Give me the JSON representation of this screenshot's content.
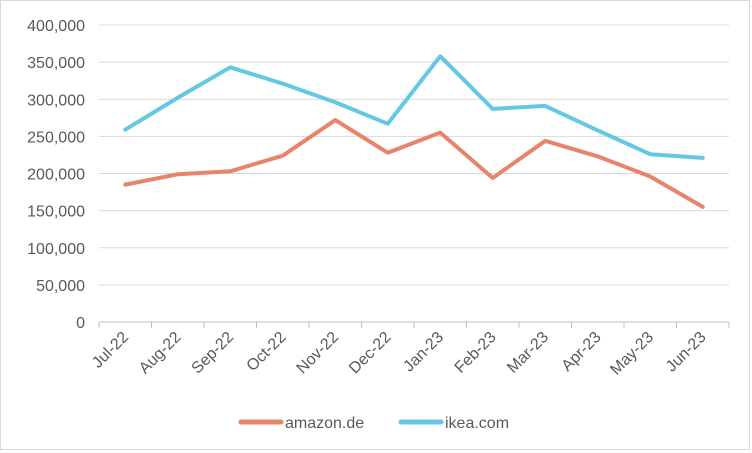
{
  "chart_data": {
    "type": "line",
    "categories": [
      "Jul-22",
      "Aug-22",
      "Sep-22",
      "Oct-22",
      "Nov-22",
      "Dec-22",
      "Jan-23",
      "Feb-23",
      "Mar-23",
      "Apr-23",
      "May-23",
      "Jun-23"
    ],
    "series": [
      {
        "name": "amazon.de",
        "color": "#e8846a",
        "values": [
          185000,
          199000,
          203000,
          224000,
          272000,
          228000,
          255000,
          194000,
          244000,
          223000,
          196000,
          155000
        ]
      },
      {
        "name": "ikea.com",
        "color": "#64c8e4",
        "values": [
          259000,
          302000,
          343000,
          321000,
          296000,
          267000,
          358000,
          287000,
          291000,
          258000,
          226000,
          221000
        ]
      }
    ],
    "ylim": [
      0,
      400000
    ],
    "yticks": [
      0,
      50000,
      100000,
      150000,
      200000,
      250000,
      300000,
      350000,
      400000
    ],
    "ytick_labels": [
      "0",
      "50,000",
      "100,000",
      "150,000",
      "200,000",
      "250,000",
      "300,000",
      "350,000",
      "400,000"
    ],
    "grid": true,
    "legend_position": "bottom",
    "title": "",
    "xlabel": "",
    "ylabel": ""
  },
  "colors": {
    "grid": "#d9d9d9",
    "axis": "#bfbfbf",
    "text": "#595959"
  }
}
